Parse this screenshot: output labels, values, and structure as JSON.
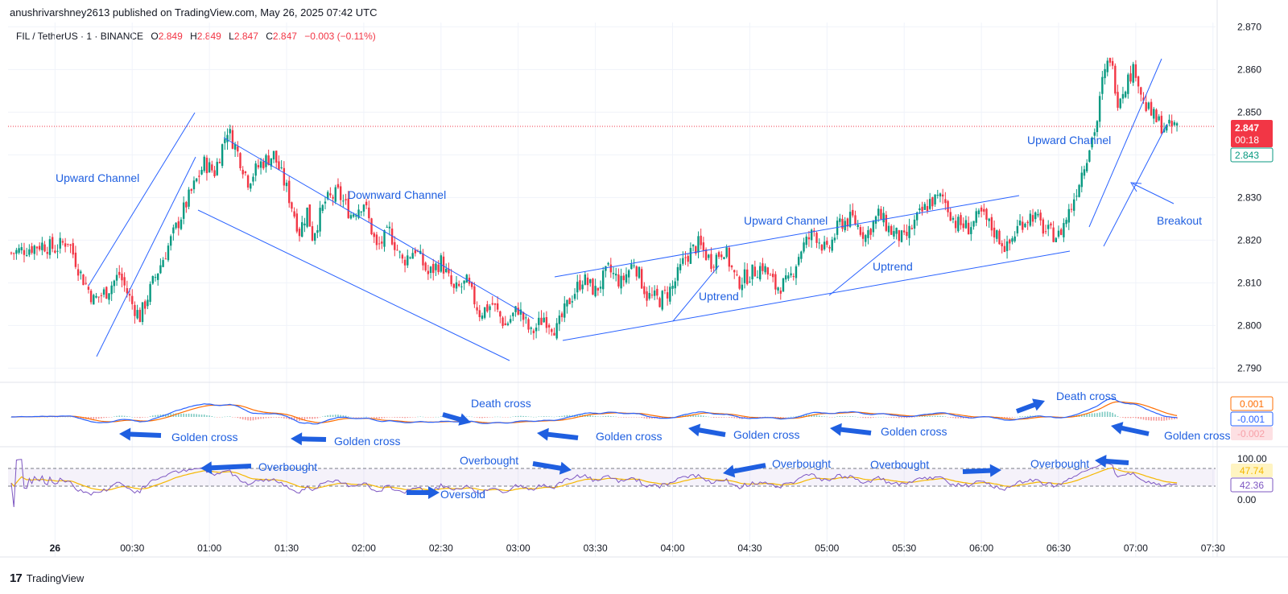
{
  "header": {
    "published": "anushrivarshney2613 published on TradingView.com, May 26, 2025 07:42 UTC"
  },
  "legend": {
    "symbol": "FIL / TetherUS · 1 · BINANCE",
    "o_label": "O",
    "o": "2.849",
    "h_label": "H",
    "h": "2.849",
    "l_label": "L",
    "l": "2.847",
    "c_label": "C",
    "c": "2.847",
    "change": "−0.003 (−0.11%)"
  },
  "footer": {
    "logo": "17",
    "brand": "TradingView"
  },
  "colors": {
    "up": "#089981",
    "down": "#f23645",
    "annotation": "#1f5fe0",
    "macd": "#2962ff",
    "signal": "#ff6d00",
    "rsi": "#7e57c2",
    "rsi_ma": "#f5b700"
  },
  "price_badges": {
    "last": "2.847",
    "countdown": "00:18",
    "bid": "2.843"
  },
  "macd_badges": {
    "signal": "0.001",
    "macd": "-0.001",
    "hist": "-0.002"
  },
  "rsi_badges": {
    "ma": "47.74",
    "rsi": "42.36"
  },
  "chart_data": {
    "type": "candlestick",
    "symbol": "FIL / TetherUS",
    "x_ticks": [
      "26",
      "00:30",
      "01:00",
      "01:30",
      "02:00",
      "02:30",
      "03:00",
      "03:30",
      "04:00",
      "04:30",
      "05:00",
      "05:30",
      "06:00",
      "06:30",
      "07:00",
      "07:30"
    ],
    "price_ticks": [
      "2.870",
      "2.860",
      "2.850",
      "2.840",
      "2.830",
      "2.820",
      "2.810",
      "2.800",
      "2.790"
    ],
    "ylim": [
      2.788,
      2.871
    ],
    "rsi_ticks": [
      "100.00",
      "0.00"
    ],
    "x_range_minutes": [
      -17,
      451
    ],
    "close_path": [
      [
        -17,
        2.817
      ],
      [
        -5,
        2.819
      ],
      [
        0,
        2.818
      ],
      [
        5,
        2.82
      ],
      [
        10,
        2.812
      ],
      [
        15,
        2.806
      ],
      [
        20,
        2.808
      ],
      [
        25,
        2.812
      ],
      [
        30,
        2.805
      ],
      [
        33,
        2.802
      ],
      [
        38,
        2.81
      ],
      [
        45,
        2.82
      ],
      [
        52,
        2.83
      ],
      [
        58,
        2.838
      ],
      [
        62,
        2.836
      ],
      [
        67,
        2.846
      ],
      [
        70,
        2.842
      ],
      [
        75,
        2.834
      ],
      [
        80,
        2.838
      ],
      [
        85,
        2.84
      ],
      [
        90,
        2.832
      ],
      [
        95,
        2.822
      ],
      [
        98,
        2.827
      ],
      [
        100,
        2.821
      ],
      [
        105,
        2.829
      ],
      [
        110,
        2.831
      ],
      [
        115,
        2.826
      ],
      [
        120,
        2.829
      ],
      [
        125,
        2.818
      ],
      [
        130,
        2.822
      ],
      [
        135,
        2.815
      ],
      [
        140,
        2.818
      ],
      [
        145,
        2.812
      ],
      [
        150,
        2.815
      ],
      [
        155,
        2.808
      ],
      [
        160,
        2.81
      ],
      [
        165,
        2.803
      ],
      [
        170,
        2.805
      ],
      [
        175,
        2.8
      ],
      [
        180,
        2.804
      ],
      [
        185,
        2.798
      ],
      [
        190,
        2.802
      ],
      [
        195,
        2.799
      ],
      [
        200,
        2.806
      ],
      [
        205,
        2.811
      ],
      [
        210,
        2.808
      ],
      [
        215,
        2.813
      ],
      [
        220,
        2.81
      ],
      [
        225,
        2.815
      ],
      [
        230,
        2.807
      ],
      [
        235,
        2.806
      ],
      [
        240,
        2.809
      ],
      [
        245,
        2.816
      ],
      [
        250,
        2.819
      ],
      [
        255,
        2.815
      ],
      [
        260,
        2.818
      ],
      [
        265,
        2.81
      ],
      [
        270,
        2.812
      ],
      [
        275,
        2.814
      ],
      [
        280,
        2.809
      ],
      [
        285,
        2.81
      ],
      [
        290,
        2.818
      ],
      [
        295,
        2.822
      ],
      [
        300,
        2.817
      ],
      [
        305,
        2.824
      ],
      [
        310,
        2.825
      ],
      [
        315,
        2.821
      ],
      [
        320,
        2.826
      ],
      [
        325,
        2.822
      ],
      [
        330,
        2.82
      ],
      [
        335,
        2.825
      ],
      [
        340,
        2.829
      ],
      [
        345,
        2.83
      ],
      [
        350,
        2.824
      ],
      [
        355,
        2.823
      ],
      [
        360,
        2.826
      ],
      [
        365,
        2.822
      ],
      [
        370,
        2.818
      ],
      [
        375,
        2.824
      ],
      [
        380,
        2.826
      ],
      [
        385,
        2.822
      ],
      [
        390,
        2.821
      ],
      [
        395,
        2.828
      ],
      [
        400,
        2.838
      ],
      [
        405,
        2.848
      ],
      [
        407,
        2.857
      ],
      [
        410,
        2.863
      ],
      [
        413,
        2.853
      ],
      [
        418,
        2.859
      ],
      [
        420,
        2.86
      ],
      [
        423,
        2.852
      ],
      [
        428,
        2.848
      ],
      [
        432,
        2.846
      ],
      [
        436,
        2.847
      ]
    ],
    "annotations": [
      "Upward Channel",
      "Downward Channel",
      "Upward Channel",
      "Uptrend",
      "Uptrend",
      "Upward Channel",
      "Breakout",
      "Golden cross",
      "Golden cross",
      "Death cross",
      "Golden cross",
      "Golden cross",
      "Golden cross",
      "Death cross",
      "Golden cross",
      "Overbought",
      "Overbought",
      "Overbought",
      "Overbought",
      "Overbought",
      "Oversold"
    ],
    "indicators": {
      "macd": {
        "macd_last": -0.001,
        "signal_last": 0.001,
        "hist_last": -0.002
      },
      "rsi": {
        "rsi_last": 42.36,
        "ma_last": 47.74
      }
    }
  }
}
